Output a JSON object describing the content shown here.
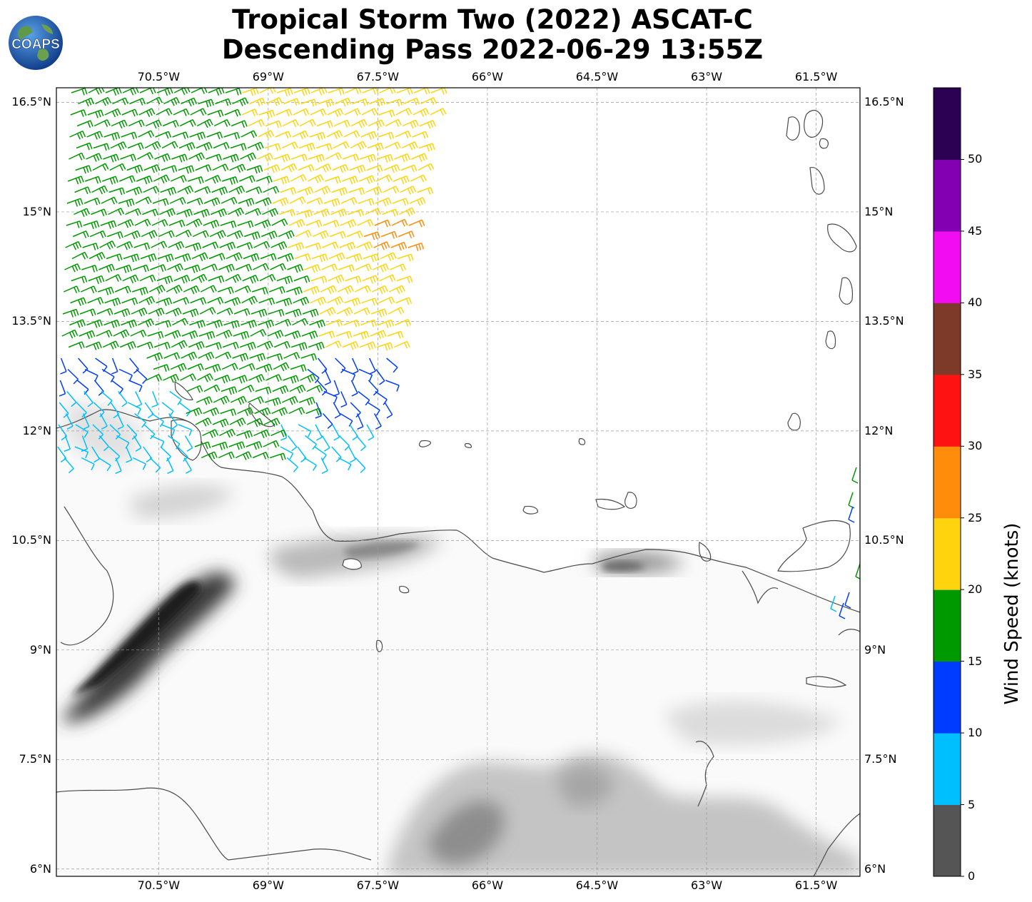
{
  "title": {
    "line1": "Tropical Storm Two (2022) ASCAT-C",
    "line2": "Descending Pass 2022-06-29 13:55Z"
  },
  "logo": {
    "text": "COAPS",
    "icon": "globe-logo-icon"
  },
  "map": {
    "lon_range": [
      -71.9,
      -60.9
    ],
    "lat_range": [
      5.9,
      16.7
    ],
    "lon_ticks": [
      "70.5°W",
      "69°W",
      "67.5°W",
      "66°W",
      "64.5°W",
      "63°W",
      "61.5°W"
    ],
    "lat_ticks": [
      "16.5°N",
      "15°N",
      "13.5°N",
      "12°N",
      "10.5°N",
      "9°N",
      "7.5°N",
      "6°N"
    ],
    "grid": true,
    "terrain": "grayscale elevation shading"
  },
  "colorbar": {
    "title": "Wind Speed (knots)",
    "tick_labels": [
      "0",
      "5",
      "10",
      "15",
      "20",
      "25",
      "30",
      "35",
      "40",
      "45",
      "50"
    ],
    "colors": [
      "#555555",
      "#00bfff",
      "#003cff",
      "#009900",
      "#ffd40f",
      "#ff8c0a",
      "#ff1212",
      "#7e3a28",
      "#f20cf2",
      "#8300b2",
      "#2c0052"
    ]
  },
  "wind_barb_colors": {
    "calm": "#555555",
    "5-10": "#00bfff",
    "10-15": "#003cff",
    "15-20": "#009900",
    "20-25": "#ffd40f",
    "25-30": "#ff8c0a"
  }
}
